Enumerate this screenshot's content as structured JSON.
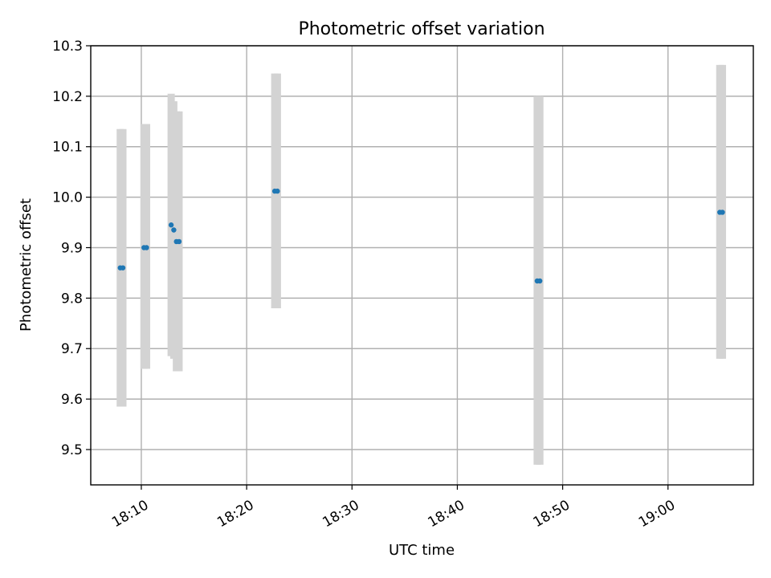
{
  "chart_data": {
    "type": "scatter",
    "title": "Photometric offset variation",
    "xlabel": "UTC time",
    "ylabel": "Photometric offset",
    "x_ticks": [
      "18:10",
      "18:20",
      "18:30",
      "18:40",
      "18:50",
      "19:00"
    ],
    "x_tick_minutes": [
      10,
      20,
      30,
      40,
      50,
      60
    ],
    "xlim_minutes": [
      5.2,
      68.1
    ],
    "ylim": [
      9.43,
      10.3
    ],
    "y_ticks": [
      "9.5",
      "9.6",
      "9.7",
      "9.8",
      "9.9",
      "10.0",
      "10.1",
      "10.2",
      "10.3"
    ],
    "grid": true,
    "marker_color": "#1f77b4",
    "errorbar_color": "#d3d3d3",
    "points": [
      {
        "t": "18:08:00",
        "y": 9.86,
        "low": 9.585,
        "high": 10.135
      },
      {
        "t": "18:08:15",
        "y": 9.86,
        "low": 9.585,
        "high": 10.135
      },
      {
        "t": "18:10:15",
        "y": 9.9,
        "low": 9.66,
        "high": 10.145
      },
      {
        "t": "18:10:30",
        "y": 9.9,
        "low": 9.66,
        "high": 10.145
      },
      {
        "t": "18:12:50",
        "y": 9.945,
        "low": 9.685,
        "high": 10.205
      },
      {
        "t": "18:13:05",
        "y": 9.935,
        "low": 9.68,
        "high": 10.19
      },
      {
        "t": "18:13:20",
        "y": 9.912,
        "low": 9.655,
        "high": 10.17
      },
      {
        "t": "18:13:35",
        "y": 9.912,
        "low": 9.655,
        "high": 10.17
      },
      {
        "t": "18:22:40",
        "y": 10.012,
        "low": 9.78,
        "high": 10.245
      },
      {
        "t": "18:22:55",
        "y": 10.012,
        "low": 9.78,
        "high": 10.245
      },
      {
        "t": "18:47:35",
        "y": 9.834,
        "low": 9.47,
        "high": 10.2
      },
      {
        "t": "18:47:50",
        "y": 9.834,
        "low": 9.47,
        "high": 10.2
      },
      {
        "t": "19:04:55",
        "y": 9.97,
        "low": 9.68,
        "high": 10.262
      },
      {
        "t": "19:05:10",
        "y": 9.97,
        "low": 9.68,
        "high": 10.262
      }
    ]
  }
}
